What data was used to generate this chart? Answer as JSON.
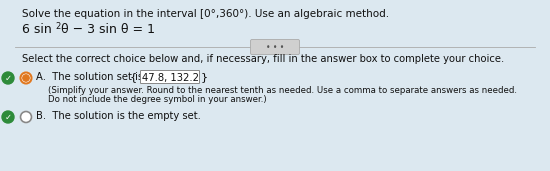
{
  "bg_color": "#dce8f0",
  "title_line1": "Solve the equation in the interval [0°,360°). Use an algebraic method.",
  "equation_normal1": "6 sin",
  "equation_super": "2",
  "equation_normal2": "θ − 3 sin θ = 1",
  "instruction": "Select the correct choice below and, if necessary, fill in the answer box to complete your choice.",
  "option_a_label": "A.  The solution set is ",
  "option_a_answer": "47.8, 132.2",
  "option_a_subtext1": "(Simplify your answer. Round to the nearest tenth as needed. Use a comma to separate answers as needed.",
  "option_a_subtext2": "Do not include the degree symbol in your answer.)",
  "option_b_label": "B.  The solution is the empty set.",
  "divider_text": "• • •",
  "text_color": "#111111",
  "radio_selected_color": "#e07820",
  "radio_border_color": "#888888",
  "check_bg_color": "#2e8b3a",
  "check_color": "#ffffff",
  "answer_box_bg": "#e8e8e8",
  "answer_box_border": "#888888",
  "divider_color": "#aaaaaa",
  "font_size_title": 7.5,
  "font_size_eq": 9.0,
  "font_size_body": 7.2,
  "font_size_small": 6.2,
  "font_size_radio": 6.0
}
